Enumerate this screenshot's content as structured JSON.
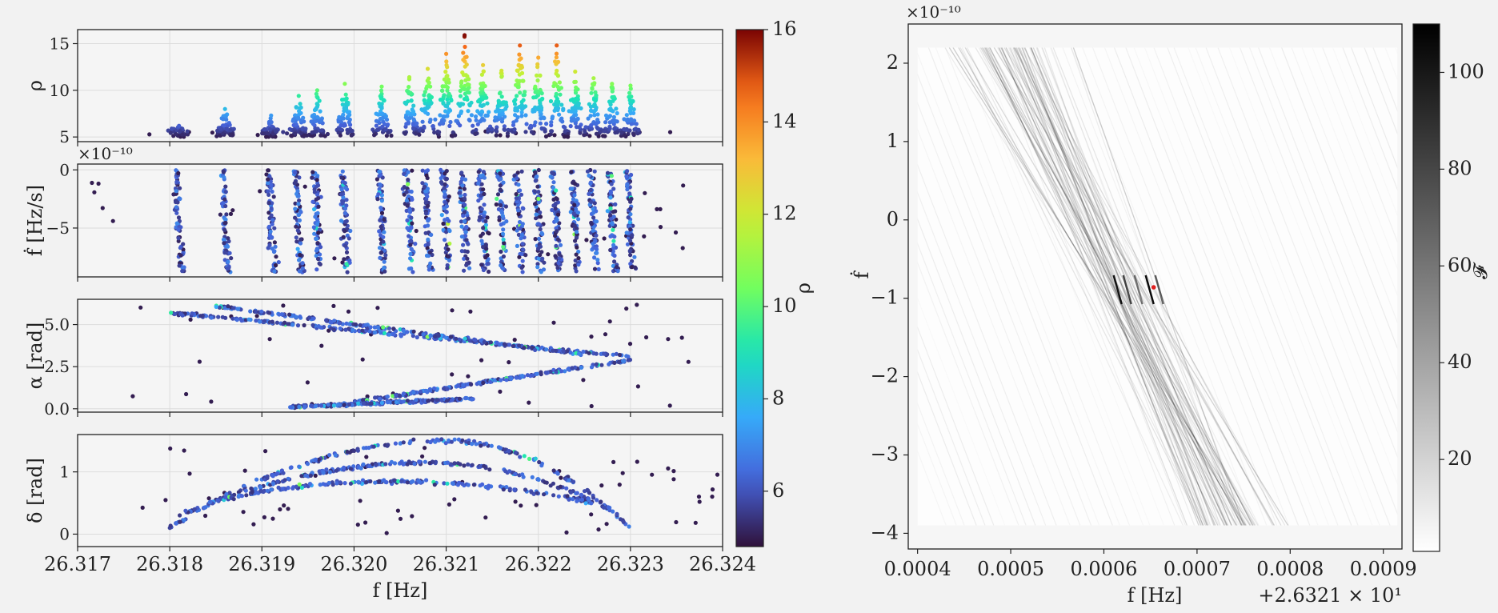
{
  "chart_data": [
    {
      "type": "scatter",
      "panels": [
        {
          "id": "rho",
          "ylabel": "ρ",
          "ylim": [
            4.5,
            16.5
          ],
          "yticks": [
            5,
            10,
            15
          ],
          "ytick_labels": [
            "5",
            "10",
            "15"
          ],
          "offset_label": ""
        },
        {
          "id": "fdot",
          "ylabel": "ḟ [Hz/s]",
          "ylim": [
            -9.2,
            0.5
          ],
          "yticks": [
            0,
            -5
          ],
          "ytick_labels": [
            "0",
            "−5"
          ],
          "offset_label": "×10⁻¹⁰"
        },
        {
          "id": "alpha",
          "ylabel": "α [rad]",
          "ylim": [
            -0.2,
            6.5
          ],
          "yticks": [
            0,
            2.5,
            5
          ],
          "ytick_labels": [
            "0.0",
            "2.5",
            "5.0"
          ],
          "offset_label": ""
        },
        {
          "id": "delta",
          "ylabel": "δ [rad]",
          "ylim": [
            -0.2,
            1.6
          ],
          "yticks": [
            0,
            1
          ],
          "ytick_labels": [
            "0",
            "1"
          ],
          "offset_label": ""
        }
      ],
      "x": {
        "label": "f [Hz]",
        "lim": [
          26.317,
          26.324
        ],
        "ticks": [
          26.317,
          26.318,
          26.319,
          26.32,
          26.321,
          26.322,
          26.323,
          26.324
        ],
        "tick_labels": [
          "26.317",
          "26.318",
          "26.319",
          "26.320",
          "26.321",
          "26.322",
          "26.323",
          "26.324"
        ]
      },
      "colorbar": {
        "label": "ρ",
        "range": [
          4.8,
          16
        ],
        "ticks": [
          6,
          8,
          10,
          12,
          14,
          16
        ],
        "colormap": "turbo"
      },
      "candidate_peaks": [
        {
          "f": 26.3181,
          "rho": 6.2
        },
        {
          "f": 26.3186,
          "rho": 8.0
        },
        {
          "f": 26.3191,
          "rho": 7.3
        },
        {
          "f": 26.3194,
          "rho": 9.4
        },
        {
          "f": 26.3196,
          "rho": 10.0
        },
        {
          "f": 26.3199,
          "rho": 10.7
        },
        {
          "f": 26.3203,
          "rho": 10.4
        },
        {
          "f": 26.3206,
          "rho": 11.4
        },
        {
          "f": 26.3208,
          "rho": 12.3
        },
        {
          "f": 26.321,
          "rho": 13.9
        },
        {
          "f": 26.3212,
          "rho": 15.9
        },
        {
          "f": 26.3214,
          "rho": 12.7
        },
        {
          "f": 26.3216,
          "rho": 12.1
        },
        {
          "f": 26.3218,
          "rho": 14.8
        },
        {
          "f": 26.322,
          "rho": 13.5
        },
        {
          "f": 26.3222,
          "rho": 14.8
        },
        {
          "f": 26.3224,
          "rho": 12.0
        },
        {
          "f": 26.3226,
          "rho": 11.3
        },
        {
          "f": 26.3228,
          "rho": 10.7
        },
        {
          "f": 26.323,
          "rho": 10.5
        }
      ],
      "alpha_tracks": [
        {
          "f0": 26.318,
          "f1": 26.323,
          "a0": 5.7,
          "a1": 3.1
        },
        {
          "f0": 26.3185,
          "f1": 26.3225,
          "a0": 6.1,
          "a1": 3.2
        },
        {
          "f0": 26.32,
          "f1": 26.323,
          "a0": 0.4,
          "a1": 2.9
        },
        {
          "f0": 26.3193,
          "f1": 26.3213,
          "a0": 0.1,
          "a1": 0.6
        }
      ],
      "delta_arcs": [
        {
          "f0": 26.318,
          "f1": 26.323,
          "peak_f": 26.321,
          "d_peak": 1.5,
          "d_end": 0.1
        },
        {
          "f0": 26.3181,
          "f1": 26.3229,
          "peak_f": 26.3208,
          "d_peak": 1.15,
          "d_end": 0.3
        },
        {
          "f0": 26.3184,
          "f1": 26.3226,
          "peak_f": 26.3204,
          "d_peak": 0.85,
          "d_end": 0.5
        }
      ]
    },
    {
      "type": "heatmap",
      "xlabel": "f [Hz]",
      "x_offset_label": "+2.6321 × 10¹",
      "xlim": [
        0.00039,
        0.00092
      ],
      "xticks": [
        0.0004,
        0.0005,
        0.0006,
        0.0007,
        0.0008,
        0.0009
      ],
      "xtick_labels": [
        "0.0004",
        "0.0005",
        "0.0006",
        "0.0007",
        "0.0008",
        "0.0009"
      ],
      "ylabel": "ḟ",
      "y_offset_label": "×10⁻¹⁰",
      "ylim": [
        -4.2,
        2.5
      ],
      "yticks": [
        2,
        1,
        0,
        -1,
        -2,
        -3,
        -4
      ],
      "ytick_labels": [
        "2",
        "1",
        "0",
        "−1",
        "−2",
        "−3",
        "−4"
      ],
      "colorbar": {
        "label": "𝓕",
        "range": [
          1,
          110
        ],
        "ticks": [
          20,
          40,
          60,
          80,
          100
        ],
        "colormap": "Greys"
      },
      "peak": {
        "f": 0.00065,
        "fdot": -0.85,
        "value": 110,
        "marker_color": "#e02020"
      }
    }
  ]
}
